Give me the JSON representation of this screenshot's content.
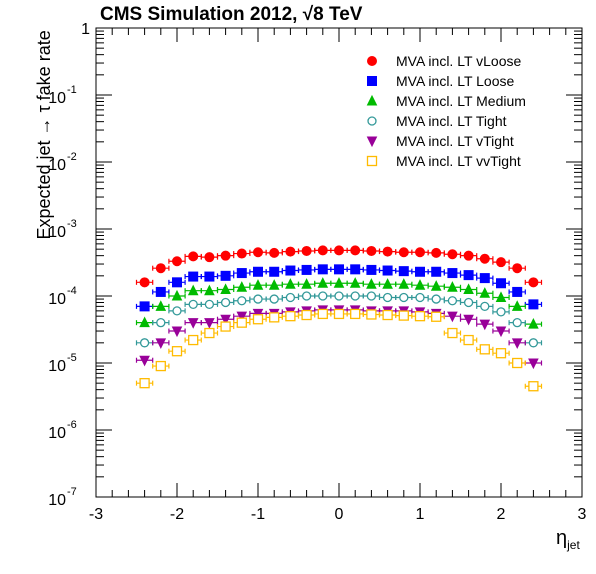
{
  "title_main": "CMS Simulation 2012,",
  "title_energy": "8 TeV",
  "title_sqrt": "√",
  "chart_data": {
    "type": "scatter",
    "xlabel": "η",
    "xlabel_sub": "jet",
    "ylabel": "Expected jet → τ fake rate",
    "xlim": [
      -3,
      3
    ],
    "ylim": [
      1e-07,
      1
    ],
    "yscale": "log",
    "grid": false,
    "legend_position": "top-right",
    "x_ticks": [
      "-3",
      "-2",
      "-1",
      "0",
      "1",
      "2",
      "3"
    ],
    "y_ticks": [
      {
        "base": "10",
        "exp": "-7",
        "v": 1e-07
      },
      {
        "base": "10",
        "exp": "-6",
        "v": 1e-06
      },
      {
        "base": "10",
        "exp": "-5",
        "v": 1e-05
      },
      {
        "base": "10",
        "exp": "-4",
        "v": 0.0001
      },
      {
        "base": "10",
        "exp": "-3",
        "v": 0.001
      },
      {
        "base": "10",
        "exp": "-2",
        "v": 0.01
      },
      {
        "base": "10",
        "exp": "-1",
        "v": 0.1
      },
      {
        "base": "1",
        "exp": "",
        "v": 1
      }
    ],
    "x_bins": [
      -2.4,
      -2.2,
      -2.0,
      -1.8,
      -1.6,
      -1.4,
      -1.2,
      -1.0,
      -0.8,
      -0.6,
      -0.4,
      -0.2,
      0.0,
      0.2,
      0.4,
      0.6,
      0.8,
      1.0,
      1.2,
      1.4,
      1.6,
      1.8,
      2.0,
      2.2,
      2.4
    ],
    "series": [
      {
        "name": "MVA incl. LT vLoose",
        "color": "#ff0000",
        "marker": "filled-circle",
        "values": [
          0.00016,
          0.00026,
          0.00033,
          0.00039,
          0.00038,
          0.0004,
          0.00043,
          0.00045,
          0.00044,
          0.00046,
          0.00047,
          0.00048,
          0.00048,
          0.00048,
          0.00047,
          0.00046,
          0.00045,
          0.00045,
          0.00044,
          0.00042,
          0.0004,
          0.00036,
          0.00032,
          0.00026,
          0.00016
        ]
      },
      {
        "name": "MVA incl. LT Loose",
        "color": "#0000ff",
        "marker": "filled-square",
        "values": [
          7e-05,
          0.000115,
          0.00016,
          0.000195,
          0.000195,
          0.0002,
          0.00022,
          0.00023,
          0.00023,
          0.00024,
          0.000245,
          0.00025,
          0.00025,
          0.00025,
          0.000245,
          0.00024,
          0.000235,
          0.00023,
          0.00023,
          0.00022,
          0.000205,
          0.000185,
          0.000155,
          0.000115,
          7.5e-05
        ]
      },
      {
        "name": "MVA incl. LT Medium",
        "color": "#00bb00",
        "marker": "filled-triangle-up",
        "values": [
          4e-05,
          7e-05,
          0.0001,
          0.00012,
          0.00012,
          0.000125,
          0.000135,
          0.000145,
          0.000145,
          0.00015,
          0.00015,
          0.000155,
          0.000155,
          0.000155,
          0.00015,
          0.00015,
          0.00015,
          0.000145,
          0.00014,
          0.000135,
          0.000125,
          0.00011,
          9.5e-05,
          7e-05,
          3.8e-05
        ]
      },
      {
        "name": "MVA incl. LT Tight",
        "color": "#339999",
        "marker": "open-circle",
        "values": [
          2e-05,
          4e-05,
          6e-05,
          7.5e-05,
          7.5e-05,
          8e-05,
          8.5e-05,
          9e-05,
          9e-05,
          9.5e-05,
          0.0001,
          0.0001,
          0.0001,
          0.0001,
          0.0001,
          9.5e-05,
          9.5e-05,
          9.5e-05,
          9e-05,
          8.5e-05,
          8e-05,
          7e-05,
          5.8e-05,
          4e-05,
          2e-05
        ]
      },
      {
        "name": "MVA incl. LT vTight",
        "color": "#990099",
        "marker": "filled-triangle-down",
        "values": [
          1.1e-05,
          2e-05,
          3e-05,
          4e-05,
          4e-05,
          4.5e-05,
          5e-05,
          5.5e-05,
          5.5e-05,
          5.8e-05,
          6e-05,
          6.2e-05,
          6.2e-05,
          6.2e-05,
          6e-05,
          6e-05,
          6e-05,
          5.8e-05,
          5.5e-05,
          5e-05,
          4.5e-05,
          3.8e-05,
          3e-05,
          2e-05,
          1e-05
        ]
      },
      {
        "name": "MVA incl. LT vvTight",
        "color": "#ffbb00",
        "marker": "open-square",
        "values": [
          5e-06,
          9e-06,
          1.5e-05,
          2.2e-05,
          2.8e-05,
          3.5e-05,
          4e-05,
          4.5e-05,
          4.8e-05,
          5e-05,
          5.2e-05,
          5.4e-05,
          5.4e-05,
          5.4e-05,
          5.3e-05,
          5.2e-05,
          5.1e-05,
          5e-05,
          4.9e-05,
          2.8e-05,
          2.2e-05,
          1.6e-05,
          1.4e-05,
          1e-05,
          4.5e-06
        ]
      }
    ]
  }
}
